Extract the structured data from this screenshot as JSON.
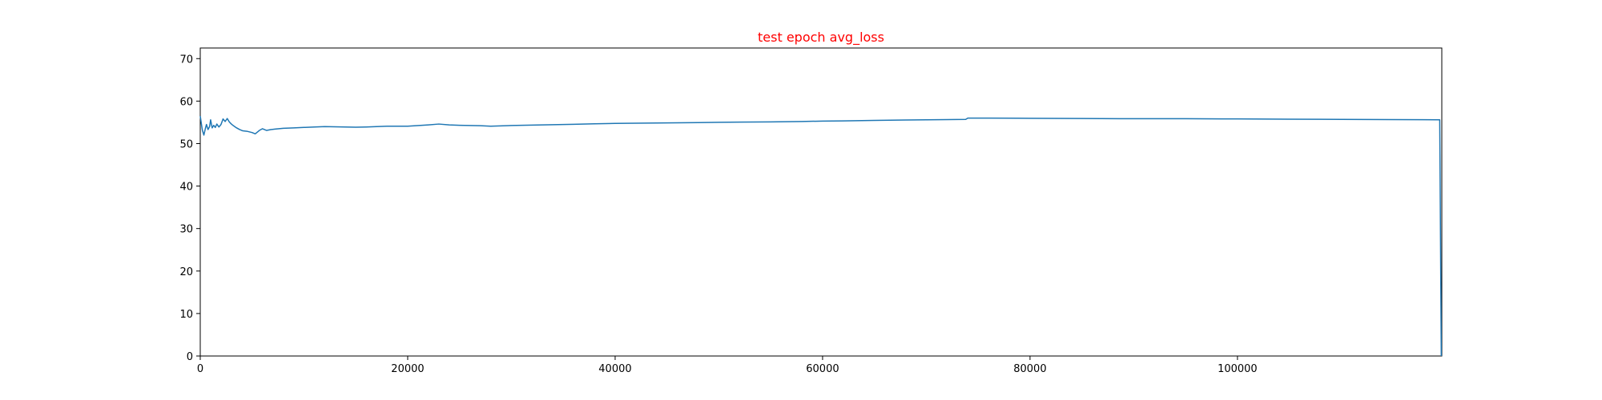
{
  "chart_data": {
    "type": "line",
    "title": "test epoch avg_loss",
    "title_color": "#ff0000",
    "xlabel": "",
    "ylabel": "",
    "xlim": [
      0,
      119700
    ],
    "ylim": [
      0,
      72.5
    ],
    "x_ticks": [
      0,
      20000,
      40000,
      60000,
      80000,
      100000
    ],
    "y_ticks": [
      0,
      10,
      20,
      30,
      40,
      50,
      60,
      70
    ],
    "grid": false,
    "legend": "none",
    "series": [
      {
        "color": "#1f77b4",
        "x": [
          0,
          100,
          200,
          350,
          500,
          600,
          750,
          900,
          1000,
          1150,
          1300,
          1450,
          1600,
          1800,
          2000,
          2200,
          2400,
          2600,
          2800,
          3000,
          3200,
          3500,
          3800,
          4100,
          4500,
          5000,
          5300,
          5700,
          6000,
          6400,
          6800,
          7200,
          7600,
          8000,
          9000,
          10000,
          11000,
          12000,
          13000,
          14000,
          15000,
          16000,
          17000,
          18000,
          20000,
          22000,
          23000,
          24000,
          25000,
          27000,
          28000,
          30000,
          32000,
          34000,
          36000,
          38000,
          40000,
          42000,
          44000,
          46000,
          48000,
          50000,
          52000,
          55000,
          58000,
          60000,
          62000,
          65000,
          68000,
          70000,
          72000,
          73800,
          74000,
          76000,
          80000,
          85000,
          90000,
          95000,
          100000,
          105000,
          110000,
          115000,
          119500,
          119650
        ],
        "values": [
          56.5,
          54.8,
          53.2,
          52.0,
          53.6,
          54.5,
          53.3,
          54.0,
          55.6,
          53.7,
          54.3,
          53.8,
          54.6,
          53.9,
          54.5,
          55.8,
          55.2,
          55.9,
          55.1,
          54.6,
          54.2,
          53.7,
          53.3,
          53.0,
          52.9,
          52.6,
          52.3,
          53.1,
          53.5,
          53.1,
          53.3,
          53.4,
          53.5,
          53.6,
          53.7,
          53.8,
          53.9,
          54.0,
          53.95,
          53.9,
          53.85,
          53.9,
          54.0,
          54.1,
          54.1,
          54.4,
          54.6,
          54.4,
          54.3,
          54.2,
          54.1,
          54.25,
          54.35,
          54.45,
          54.55,
          54.65,
          54.75,
          54.8,
          54.85,
          54.9,
          54.95,
          55.0,
          55.05,
          55.1,
          55.2,
          55.3,
          55.35,
          55.45,
          55.55,
          55.6,
          55.65,
          55.7,
          56.0,
          56.0,
          55.95,
          55.9,
          55.85,
          55.85,
          55.8,
          55.75,
          55.7,
          55.65,
          55.6,
          0.0
        ]
      }
    ]
  }
}
